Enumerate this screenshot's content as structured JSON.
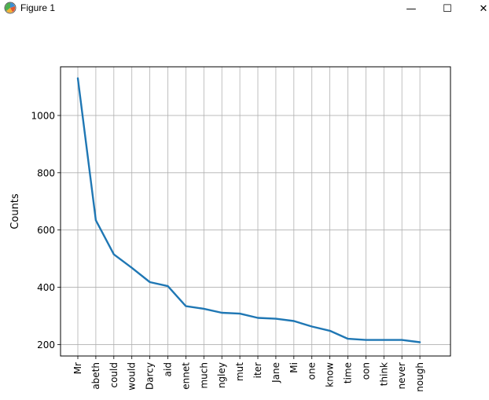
{
  "window": {
    "title": "Figure 1",
    "controls": {
      "minimize": "—",
      "maximize": "☐",
      "close": "✕"
    }
  },
  "chart_data": {
    "type": "line",
    "title": "",
    "xlabel": "",
    "ylabel": "Counts",
    "categories": [
      "Mr",
      "abeth",
      "could",
      "would",
      "Darcy",
      "aid",
      "ennet",
      "much",
      "ngley",
      "mut",
      "iter",
      "Jane",
      "Mi",
      "one",
      "know",
      "time",
      "oon",
      "think",
      "never",
      "nough"
    ],
    "values": [
      1130,
      634,
      515,
      468,
      418,
      404,
      334,
      325,
      311,
      308,
      293,
      290,
      282,
      263,
      248,
      220,
      216,
      216,
      216,
      208
    ],
    "ylim": [
      160,
      1170
    ],
    "yticks": [
      200,
      400,
      600,
      800,
      1000
    ],
    "grid": true,
    "line_color": "#1f77b4"
  }
}
